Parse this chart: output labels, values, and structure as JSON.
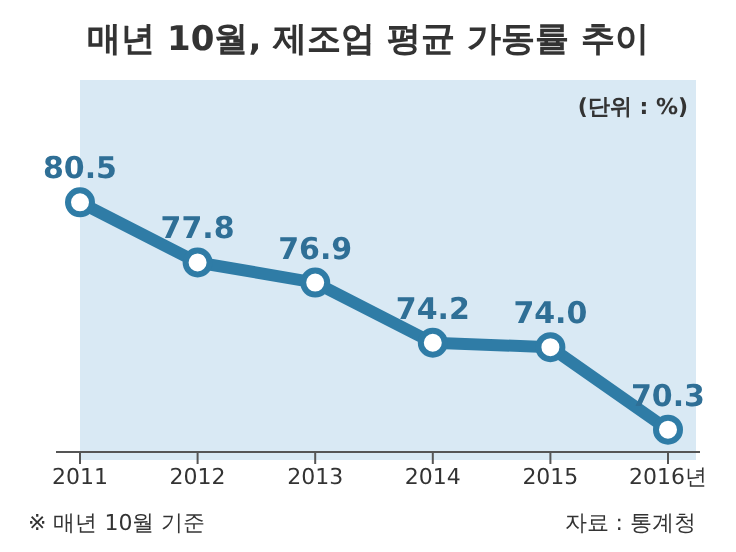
{
  "chart_data": {
    "type": "line",
    "title": "매년 10월, 제조업 평균 가동률 추이",
    "subtitle": "(단위 : %)",
    "categories": [
      "2011",
      "2012",
      "2013",
      "2014",
      "2015",
      "2016년"
    ],
    "series": [
      {
        "color": "#2f7ca6",
        "values": [
          80.5,
          77.8,
          76.9,
          74.2,
          74.0,
          70.3
        ],
        "value_labels": [
          "80.5",
          "77.8",
          "76.9",
          "74.2",
          "74.0",
          "70.3"
        ]
      }
    ],
    "marker": "circle",
    "line_style": "solid",
    "grid": false,
    "legend": false,
    "annotations": [
      "※ 매년 10월 기준",
      "자료 : 통계청"
    ]
  }
}
